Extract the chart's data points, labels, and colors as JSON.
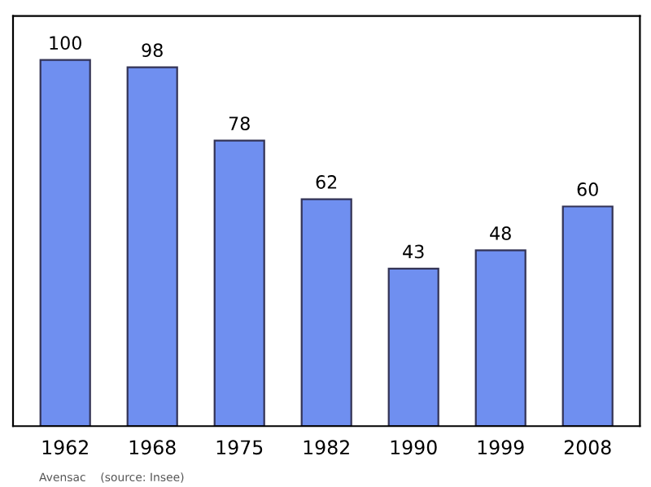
{
  "chart_data": {
    "type": "bar",
    "categories": [
      "1962",
      "1968",
      "1975",
      "1982",
      "1990",
      "1999",
      "2008"
    ],
    "values": [
      100,
      98,
      78,
      62,
      43,
      48,
      60
    ],
    "color": "#6f8ff0",
    "data_labels": true,
    "ylim": [
      0,
      112
    ],
    "grid": false,
    "legend": false,
    "annotations": [
      "Avensac    (source: Insee)"
    ]
  }
}
